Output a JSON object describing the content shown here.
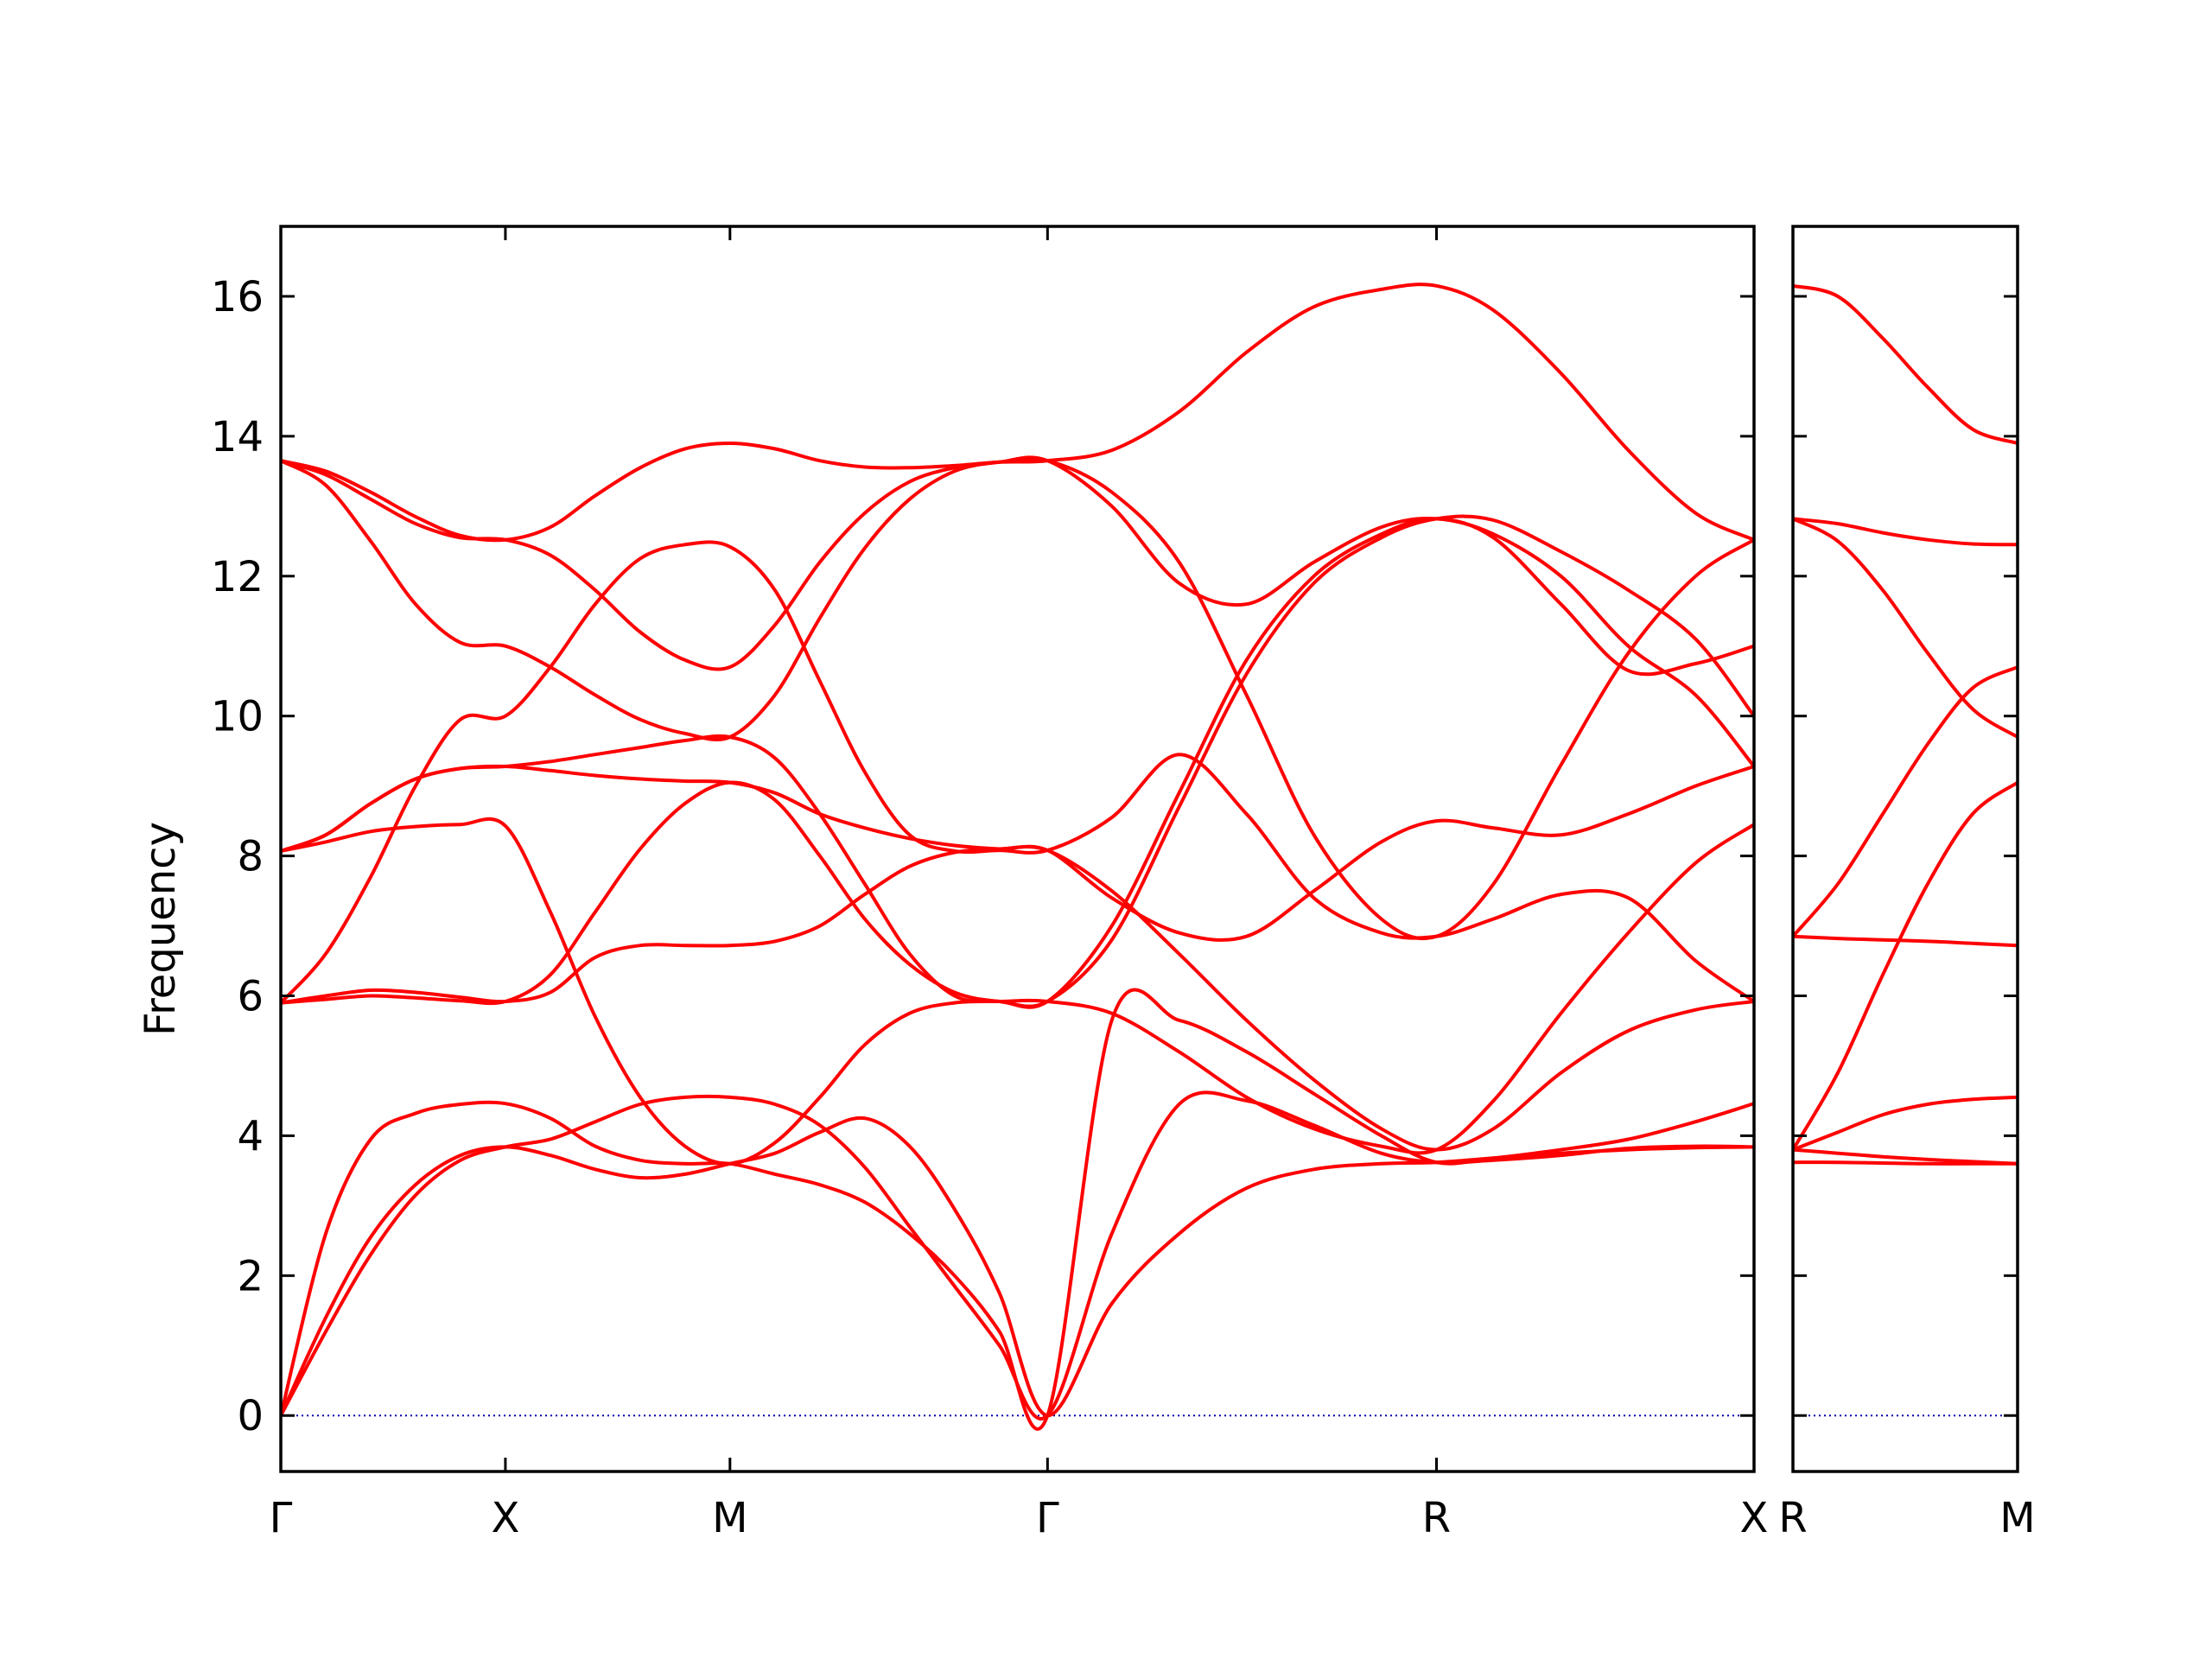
{
  "chart_data": {
    "type": "line",
    "title": "",
    "xlabel": "",
    "ylabel": "Frequency",
    "ylim": [
      -0.8,
      17.0
    ],
    "yticks": [
      0,
      2,
      4,
      6,
      8,
      10,
      12,
      14,
      16
    ],
    "grid": false,
    "legend": "none",
    "colors": {
      "band": "#ff0000",
      "zero_line": "#0000aa",
      "frame": "#000000"
    },
    "panels": [
      {
        "id": "main",
        "kpoints": [
          {
            "label": "Γ",
            "x": 0.0
          },
          {
            "label": "X",
            "x": 0.5
          },
          {
            "label": "M",
            "x": 1.0
          },
          {
            "label": "Γ",
            "x": 1.707
          },
          {
            "label": "R",
            "x": 2.573
          },
          {
            "label": "X",
            "x": 3.28
          }
        ],
        "bands": [
          {
            "x": [
              0,
              0.1,
              0.2,
              0.3,
              0.4,
              0.5,
              0.6,
              0.7,
              0.8,
              0.9,
              1.0,
              1.1,
              1.2,
              1.3,
              1.4,
              1.5,
              1.6,
              1.707,
              1.85,
              2.0,
              2.15,
              2.3,
              2.45,
              2.573,
              2.7,
              2.85,
              3.0,
              3.15,
              3.28
            ],
            "y": [
              0,
              1.4,
              2.55,
              3.3,
              3.72,
              3.84,
              3.72,
              3.52,
              3.4,
              3.45,
              3.6,
              3.75,
              4.05,
              4.25,
              3.85,
              2.95,
              1.75,
              0,
              1.6,
              2.6,
              3.25,
              3.52,
              3.6,
              3.62,
              3.68,
              3.75,
              3.8,
              3.83,
              3.84
            ]
          },
          {
            "x": [
              0,
              0.1,
              0.2,
              0.3,
              0.4,
              0.5,
              0.6,
              0.7,
              0.8,
              0.9,
              1.0,
              1.1,
              1.2,
              1.3,
              1.4,
              1.5,
              1.6,
              1.707,
              1.85,
              2.0,
              2.15,
              2.3,
              2.45,
              2.573,
              2.7,
              2.85,
              3.0,
              3.15,
              3.28
            ],
            "y": [
              0,
              1.2,
              2.3,
              3.15,
              3.65,
              3.84,
              3.95,
              4.2,
              4.45,
              4.55,
              4.55,
              4.45,
              4.15,
              3.55,
              2.7,
              1.85,
              1.0,
              0,
              2.6,
              4.45,
              4.5,
              4.15,
              3.75,
              3.62,
              3.65,
              3.72,
              3.82,
              3.85,
              3.84
            ]
          },
          {
            "x": [
              0,
              0.1,
              0.2,
              0.3,
              0.4,
              0.5,
              0.6,
              0.7,
              0.8,
              0.9,
              1.0,
              1.1,
              1.2,
              1.3,
              1.4,
              1.5,
              1.6,
              1.707,
              1.85,
              2.0,
              2.15,
              2.3,
              2.45,
              2.573,
              2.7,
              2.85,
              3.0,
              3.15,
              3.28
            ],
            "y": [
              0,
              2.6,
              3.95,
              4.32,
              4.45,
              4.46,
              4.25,
              3.85,
              3.65,
              3.6,
              3.6,
              3.45,
              3.3,
              3.05,
              2.6,
              2.0,
              1.2,
              0,
              5.65,
              5.65,
              5.2,
              4.6,
              4.0,
              3.62,
              3.68,
              3.8,
              3.95,
              4.2,
              4.46
            ]
          },
          {
            "x": [
              0,
              0.1,
              0.2,
              0.3,
              0.4,
              0.5,
              0.6,
              0.7,
              0.8,
              0.9,
              1.0,
              1.1,
              1.2,
              1.3,
              1.4,
              1.5,
              1.6,
              1.707,
              1.85,
              2.0,
              2.15,
              2.3,
              2.45,
              2.573,
              2.7,
              2.85,
              3.0,
              3.15,
              3.28
            ],
            "y": [
              5.9,
              6.0,
              6.08,
              6.05,
              5.98,
              5.92,
              6.05,
              6.55,
              6.72,
              6.72,
              6.72,
              6.78,
              7.0,
              7.45,
              7.85,
              8.05,
              8.1,
              8.08,
              7.5,
              6.6,
              5.65,
              4.8,
              4.1,
              3.8,
              4.1,
              4.9,
              5.5,
              5.8,
              5.92
            ]
          },
          {
            "x": [
              0,
              0.1,
              0.2,
              0.3,
              0.4,
              0.5,
              0.6,
              0.7,
              0.8,
              0.9,
              1.0,
              1.1,
              1.2,
              1.3,
              1.4,
              1.5,
              1.6,
              1.707,
              1.85,
              2.0,
              2.15,
              2.3,
              2.45,
              2.573,
              2.7,
              2.85,
              3.0,
              3.15,
              3.28
            ],
            "y": [
              5.9,
              6.6,
              7.7,
              9.0,
              9.95,
              10.0,
              10.7,
              11.6,
              12.25,
              12.45,
              12.42,
              11.8,
              10.5,
              9.2,
              8.3,
              8.07,
              8.08,
              8.08,
              8.55,
              9.45,
              8.6,
              7.4,
              6.9,
              6.85,
              7.1,
              7.45,
              7.4,
              6.5,
              5.92
            ]
          },
          {
            "x": [
              0,
              0.1,
              0.2,
              0.3,
              0.4,
              0.5,
              0.6,
              0.7,
              0.8,
              0.9,
              1.0,
              1.1,
              1.2,
              1.3,
              1.4,
              1.5,
              1.6,
              1.707,
              1.85,
              2.0,
              2.15,
              2.3,
              2.45,
              2.573,
              2.7,
              2.85,
              3.0,
              3.15,
              3.28
            ],
            "y": [
              8.07,
              8.2,
              8.35,
              8.42,
              8.45,
              8.43,
              7.2,
              5.7,
              4.55,
              3.85,
              3.6,
              3.9,
              4.55,
              5.3,
              5.75,
              5.9,
              5.92,
              5.92,
              5.75,
              5.2,
              4.55,
              4.1,
              3.85,
              3.8,
              4.5,
              5.75,
              6.9,
              7.9,
              8.45
            ]
          },
          {
            "x": [
              0,
              0.1,
              0.2,
              0.3,
              0.4,
              0.5,
              0.6,
              0.7,
              0.8,
              0.9,
              1.0,
              1.1,
              1.2,
              1.3,
              1.4,
              1.5,
              1.6,
              1.707,
              1.85,
              2.0,
              2.15,
              2.3,
              2.45,
              2.573,
              2.7,
              2.85,
              3.0,
              3.15,
              3.28
            ],
            "y": [
              5.9,
              5.95,
              6.0,
              5.97,
              5.93,
              5.92,
              6.3,
              7.2,
              8.1,
              8.75,
              9.05,
              8.8,
              8.0,
              7.1,
              6.45,
              6.05,
              5.92,
              5.92,
              6.8,
              8.7,
              10.6,
              11.9,
              12.55,
              12.82,
              12.8,
              12.35,
              11.8,
              11.1,
              10.0
            ]
          },
          {
            "x": [
              0,
              0.1,
              0.2,
              0.3,
              0.4,
              0.5,
              0.6,
              0.7,
              0.8,
              0.9,
              1.0,
              1.1,
              1.2,
              1.3,
              1.4,
              1.5,
              1.6,
              1.707,
              1.85,
              2.0,
              2.15,
              2.3,
              2.45,
              2.573,
              2.7,
              2.85,
              3.0,
              3.15,
              3.28
            ],
            "y": [
              8.07,
              8.3,
              8.75,
              9.1,
              9.25,
              9.28,
              9.35,
              9.45,
              9.55,
              9.65,
              9.7,
              9.4,
              8.6,
              7.6,
              6.6,
              6.0,
              5.92,
              5.92,
              7.0,
              8.9,
              10.8,
              12.0,
              12.6,
              12.82,
              12.55,
              11.6,
              10.65,
              10.75,
              11.0
            ]
          },
          {
            "x": [
              0,
              0.1,
              0.2,
              0.3,
              0.4,
              0.5,
              0.6,
              0.7,
              0.8,
              0.9,
              1.0,
              1.1,
              1.2,
              1.3,
              1.4,
              1.5,
              1.6,
              1.707,
              1.85,
              2.0,
              2.15,
              2.3,
              2.45,
              2.573,
              2.7,
              2.85,
              3.0,
              3.15,
              3.28
            ],
            "y": [
              8.07,
              8.3,
              8.75,
              9.1,
              9.25,
              9.28,
              9.22,
              9.15,
              9.1,
              9.07,
              9.05,
              8.9,
              8.6,
              8.4,
              8.25,
              8.15,
              8.1,
              8.08,
              7.4,
              6.9,
              6.85,
              7.5,
              8.2,
              8.5,
              8.4,
              8.3,
              8.6,
              9.0,
              9.28
            ]
          },
          {
            "x": [
              0,
              0.1,
              0.2,
              0.3,
              0.4,
              0.5,
              0.6,
              0.7,
              0.8,
              0.9,
              1.0,
              1.1,
              1.2,
              1.3,
              1.4,
              1.5,
              1.6,
              1.707,
              1.85,
              2.0,
              2.15,
              2.3,
              2.45,
              2.573,
              2.7,
              2.85,
              3.0,
              3.15,
              3.28
            ],
            "y": [
              13.65,
              13.3,
              12.5,
              11.6,
              11.05,
              11.0,
              10.7,
              10.3,
              9.95,
              9.75,
              9.7,
              10.3,
              11.4,
              12.4,
              13.1,
              13.5,
              13.63,
              13.65,
              13.0,
              11.9,
              11.6,
              12.2,
              12.7,
              12.82,
              12.6,
              12.0,
              11.0,
              10.3,
              9.28
            ]
          },
          {
            "x": [
              0,
              0.1,
              0.2,
              0.3,
              0.4,
              0.5,
              0.6,
              0.7,
              0.8,
              0.9,
              1.0,
              1.1,
              1.2,
              1.3,
              1.4,
              1.5,
              1.6,
              1.707,
              1.85,
              2.0,
              2.15,
              2.3,
              2.45,
              2.573,
              2.7,
              2.85,
              3.0,
              3.15,
              3.28
            ],
            "y": [
              13.65,
              13.45,
              13.1,
              12.75,
              12.55,
              12.52,
              12.3,
              11.8,
              11.2,
              10.8,
              10.7,
              11.3,
              12.2,
              12.9,
              13.35,
              13.55,
              13.63,
              13.65,
              13.2,
              12.2,
              10.3,
              8.3,
              7.1,
              6.85,
              7.6,
              9.3,
              10.9,
              12.0,
              12.52
            ]
          },
          {
            "x": [
              0,
              0.1,
              0.2,
              0.3,
              0.4,
              0.5,
              0.6,
              0.7,
              0.8,
              0.9,
              1.0,
              1.1,
              1.2,
              1.3,
              1.4,
              1.5,
              1.6,
              1.707,
              1.85,
              2.0,
              2.15,
              2.3,
              2.45,
              2.573,
              2.7,
              2.85,
              3.0,
              3.15,
              3.28
            ],
            "y": [
              13.65,
              13.5,
              13.2,
              12.85,
              12.58,
              12.52,
              12.7,
              13.15,
              13.55,
              13.82,
              13.9,
              13.82,
              13.65,
              13.56,
              13.55,
              13.58,
              13.63,
              13.65,
              13.8,
              14.35,
              15.2,
              15.85,
              16.1,
              16.15,
              15.8,
              14.9,
              13.8,
              12.9,
              12.52
            ]
          }
        ]
      },
      {
        "id": "right",
        "kpoints": [
          {
            "label": "R",
            "x": 0.0
          },
          {
            "label": "M",
            "x": 0.5
          }
        ],
        "bands": [
          {
            "x": [
              0,
              0.1,
              0.2,
              0.3,
              0.4,
              0.5
            ],
            "y": [
              3.62,
              3.62,
              3.61,
              3.6,
              3.6,
              3.6
            ]
          },
          {
            "x": [
              0,
              0.1,
              0.2,
              0.3,
              0.4,
              0.5
            ],
            "y": [
              3.8,
              3.75,
              3.7,
              3.66,
              3.63,
              3.6
            ]
          },
          {
            "x": [
              0,
              0.1,
              0.2,
              0.3,
              0.4,
              0.5
            ],
            "y": [
              3.8,
              4.05,
              4.3,
              4.45,
              4.52,
              4.55
            ]
          },
          {
            "x": [
              0,
              0.1,
              0.2,
              0.3,
              0.4,
              0.5
            ],
            "y": [
              3.8,
              4.9,
              6.3,
              7.6,
              8.6,
              9.05
            ]
          },
          {
            "x": [
              0,
              0.1,
              0.2,
              0.3,
              0.4,
              0.5
            ],
            "y": [
              6.85,
              6.82,
              6.8,
              6.78,
              6.75,
              6.72
            ]
          },
          {
            "x": [
              0,
              0.1,
              0.2,
              0.3,
              0.4,
              0.5
            ],
            "y": [
              6.85,
              7.6,
              8.6,
              9.6,
              10.4,
              10.7
            ]
          },
          {
            "x": [
              0,
              0.1,
              0.2,
              0.3,
              0.4,
              0.5
            ],
            "y": [
              12.82,
              12.5,
              11.8,
              10.9,
              10.1,
              9.7
            ]
          },
          {
            "x": [
              0,
              0.1,
              0.2,
              0.3,
              0.4,
              0.5
            ],
            "y": [
              12.82,
              12.75,
              12.62,
              12.52,
              12.46,
              12.45
            ]
          },
          {
            "x": [
              0,
              0.1,
              0.2,
              0.3,
              0.4,
              0.5
            ],
            "y": [
              16.15,
              16.0,
              15.4,
              14.7,
              14.1,
              13.9
            ]
          }
        ]
      }
    ]
  }
}
